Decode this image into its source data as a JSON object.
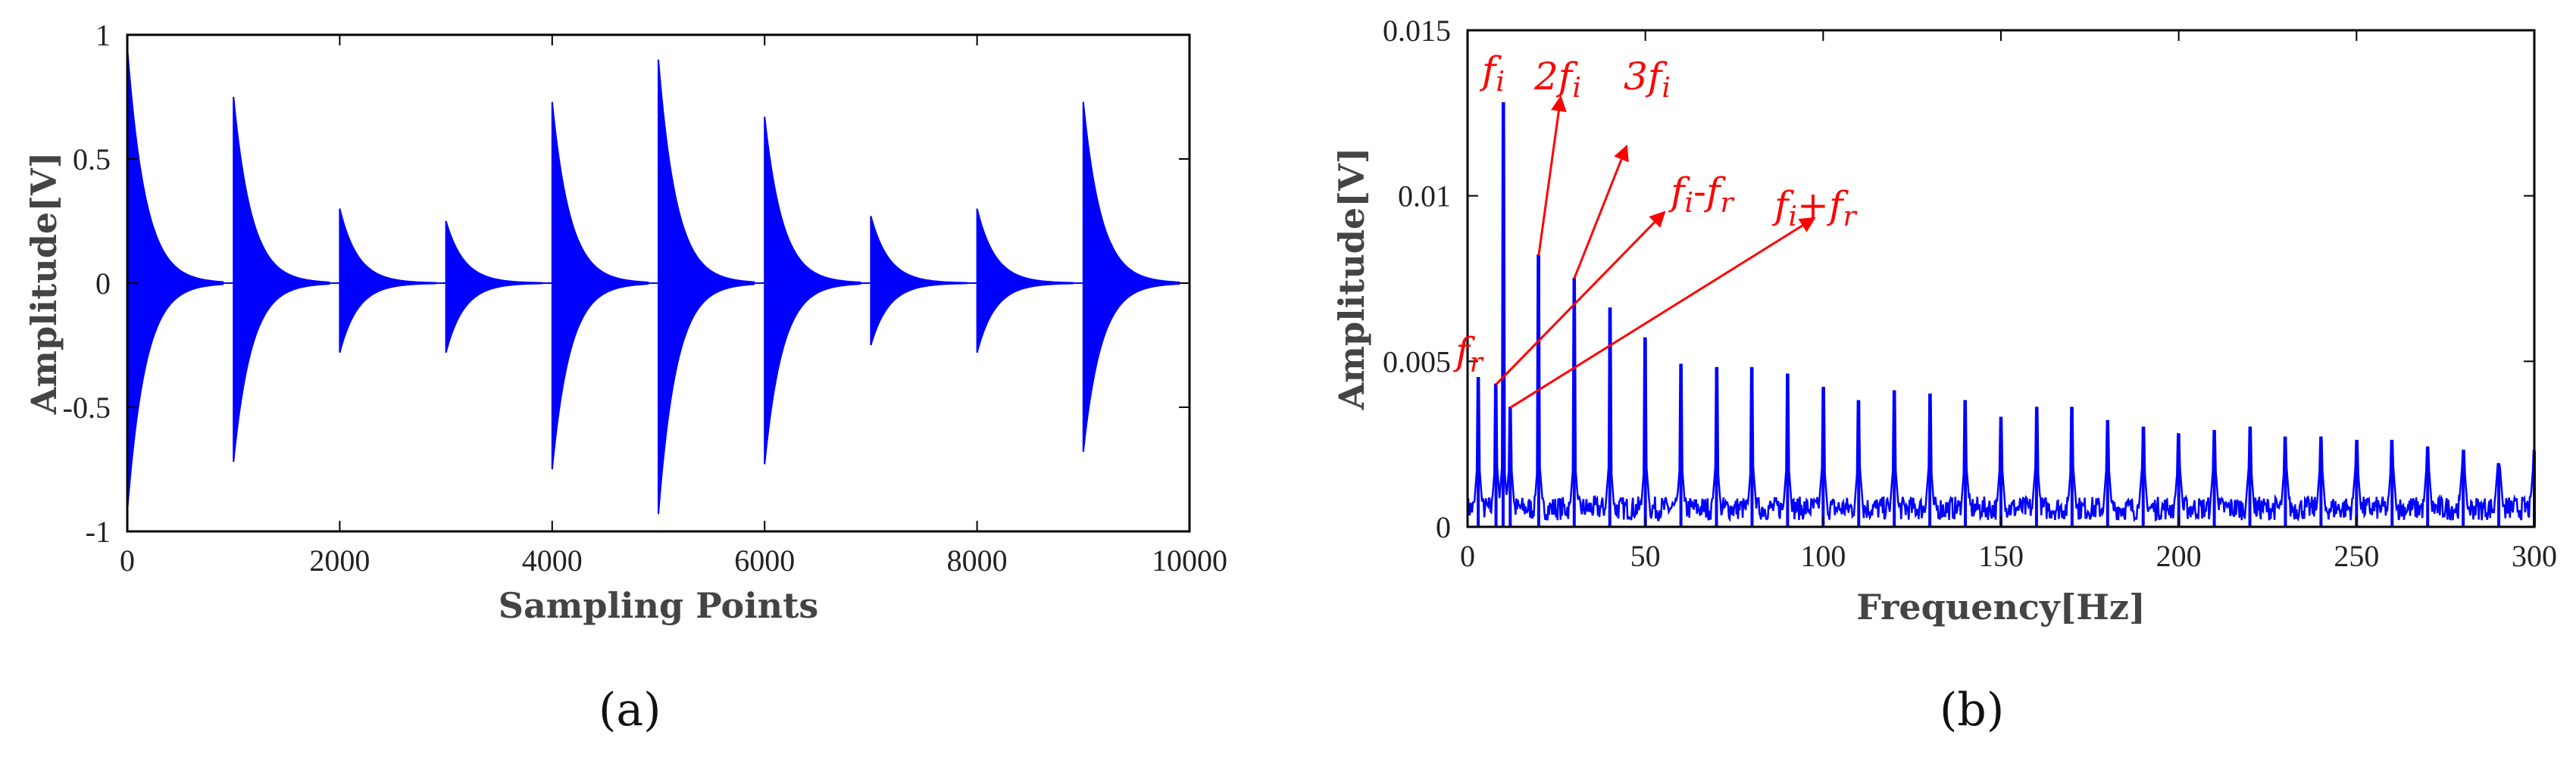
{
  "chart_data": [
    {
      "type": "line",
      "panel_label": "(a)",
      "title": "",
      "xlabel": "Sampling Points",
      "ylabel": "Amplitude[V]",
      "xlim": [
        0,
        10000
      ],
      "ylim": [
        -1,
        1
      ],
      "grid": false,
      "x_ticks": [
        "0",
        "2000",
        "4000",
        "6000",
        "8000",
        "10000"
      ],
      "y_ticks": [
        "-1",
        "-0.5",
        "0",
        "0.5",
        "1"
      ],
      "impulse_times": [
        0,
        1000,
        2000,
        3000,
        4000,
        5000,
        6000,
        7000,
        8000,
        9000
      ],
      "impulse_pos_peaks": [
        0.95,
        0.75,
        0.3,
        0.25,
        0.73,
        0.9,
        0.67,
        0.27,
        0.3,
        0.73
      ],
      "impulse_neg_peaks": [
        -0.92,
        -0.72,
        -0.28,
        -0.28,
        -0.75,
        -0.93,
        -0.73,
        -0.25,
        -0.28,
        -0.68
      ],
      "series_color": "#0000ff"
    },
    {
      "type": "line",
      "panel_label": "(b)",
      "title": "",
      "xlabel": "Frequency[Hz]",
      "ylabel": "Amplitude[V]",
      "xlim": [
        0,
        300
      ],
      "ylim": [
        0,
        0.015
      ],
      "grid": false,
      "x_ticks": [
        "0",
        "50",
        "100",
        "150",
        "200",
        "250",
        "300"
      ],
      "y_ticks": [
        "0",
        "0.005",
        "0.01",
        "0.015"
      ],
      "spectral_peaks": [
        {
          "freq": 3,
          "amp": 0.0045
        },
        {
          "freq": 8,
          "amp": 0.0043
        },
        {
          "freq": 10,
          "amp": 0.0128
        },
        {
          "freq": 12,
          "amp": 0.0036
        },
        {
          "freq": 20,
          "amp": 0.0082
        },
        {
          "freq": 30,
          "amp": 0.0075
        },
        {
          "freq": 40,
          "amp": 0.0066
        },
        {
          "freq": 50,
          "amp": 0.0057
        },
        {
          "freq": 60,
          "amp": 0.0049
        },
        {
          "freq": 70,
          "amp": 0.0048
        },
        {
          "freq": 80,
          "amp": 0.0048
        },
        {
          "freq": 90,
          "amp": 0.0046
        },
        {
          "freq": 100,
          "amp": 0.0042
        },
        {
          "freq": 110,
          "amp": 0.0038
        },
        {
          "freq": 120,
          "amp": 0.0041
        },
        {
          "freq": 130,
          "amp": 0.004
        },
        {
          "freq": 140,
          "amp": 0.0038
        },
        {
          "freq": 150,
          "amp": 0.0033
        },
        {
          "freq": 160,
          "amp": 0.0036
        },
        {
          "freq": 170,
          "amp": 0.0036
        },
        {
          "freq": 180,
          "amp": 0.0032
        },
        {
          "freq": 190,
          "amp": 0.003
        },
        {
          "freq": 200,
          "amp": 0.0028
        },
        {
          "freq": 210,
          "amp": 0.0029
        },
        {
          "freq": 220,
          "amp": 0.003
        },
        {
          "freq": 230,
          "amp": 0.0027
        },
        {
          "freq": 240,
          "amp": 0.0027
        },
        {
          "freq": 250,
          "amp": 0.0026
        },
        {
          "freq": 260,
          "amp": 0.0026
        },
        {
          "freq": 270,
          "amp": 0.0024
        },
        {
          "freq": 280,
          "amp": 0.0023
        },
        {
          "freq": 290,
          "amp": 0.0019
        },
        {
          "freq": 300,
          "amp": 0.0023
        }
      ],
      "noise_floor": 0.0008,
      "series_color": "#0000ff",
      "annotation_color": "#ff0000",
      "annotations": [
        {
          "text": "f",
          "sub": "i",
          "freq": 10,
          "amp": 0.0128
        },
        {
          "text": "2f",
          "sub": "i",
          "freq": 20,
          "amp": 0.0082
        },
        {
          "text": "3f",
          "sub": "i",
          "freq": 30,
          "amp": 0.0075
        },
        {
          "text": "f",
          "sub": "r",
          "freq": 3,
          "amp": 0.0045
        },
        {
          "text": "f",
          "sub": "i",
          "mid": "-",
          "text2": "f",
          "sub2": "r",
          "freq": 8,
          "amp": 0.0043
        },
        {
          "text": "f",
          "sub": "i",
          "mid": "+",
          "text2": "f",
          "sub2": "r",
          "freq": 12,
          "amp": 0.0036
        }
      ]
    }
  ]
}
